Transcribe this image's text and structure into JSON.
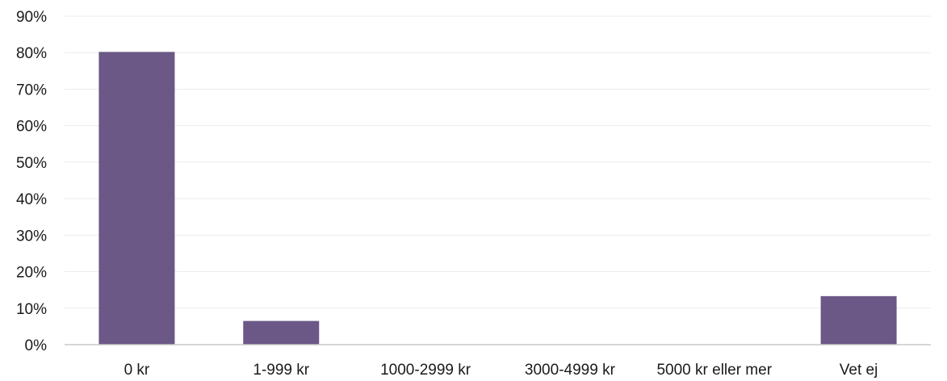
{
  "chart_data": {
    "type": "bar",
    "categories": [
      "0 kr",
      "1-999 kr",
      "1000-2999 kr",
      "3000-4999 kr",
      "5000 kr eller mer",
      "Vet ej"
    ],
    "values": [
      80.2,
      6.5,
      0,
      0,
      0,
      13.3
    ],
    "title": "",
    "xlabel": "",
    "ylabel": "",
    "ylim": [
      0,
      90
    ],
    "yticks": [
      "0%",
      "10%",
      "20%",
      "30%",
      "40%",
      "50%",
      "60%",
      "70%",
      "80%",
      "90%"
    ],
    "grid": true,
    "legend": "none",
    "colors": {
      "bar": "#6b5886",
      "grid": "#ececec",
      "axis": "#c8c8c8"
    }
  }
}
